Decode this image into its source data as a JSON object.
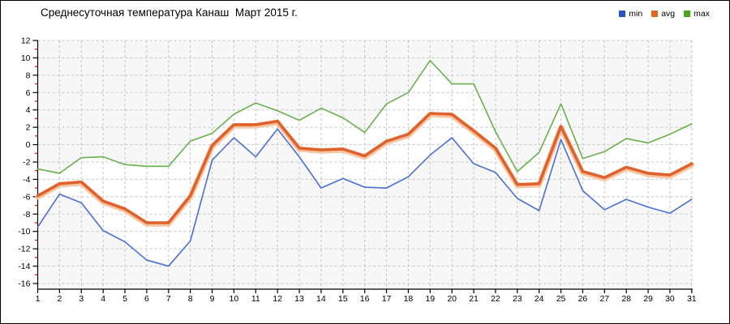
{
  "title": "Среднесуточная температура Канаш  Март 2015 г.",
  "legend": [
    {
      "label": "min",
      "color": "#2b4fc8"
    },
    {
      "label": "avg",
      "color": "#e2661f"
    },
    {
      "label": "max",
      "color": "#48a81c"
    }
  ],
  "chart_data": {
    "type": "line",
    "title": "Среднесуточная температура Канаш  Март 2015 г.",
    "xlabel": "",
    "ylabel": "",
    "x": [
      1,
      2,
      3,
      4,
      5,
      6,
      7,
      8,
      9,
      10,
      11,
      12,
      13,
      14,
      15,
      16,
      17,
      18,
      19,
      20,
      21,
      22,
      23,
      24,
      25,
      26,
      27,
      28,
      29,
      30,
      31
    ],
    "series": [
      {
        "name": "min",
        "color": "#4a6fd4",
        "width": 1.6,
        "values": [
          -9.5,
          -5.7,
          -6.7,
          -9.9,
          -11.2,
          -13.3,
          -14.0,
          -11.1,
          -1.8,
          0.8,
          -1.4,
          1.8,
          -1.4,
          -5.0,
          -3.9,
          -4.9,
          -5.0,
          -3.7,
          -1.2,
          0.8,
          -2.2,
          -3.2,
          -6.2,
          -7.6,
          0.6,
          -5.3,
          -7.5,
          -6.3,
          -7.2,
          -7.9,
          -6.3
        ]
      },
      {
        "name": "avg",
        "color": "#e0612c",
        "width": 3.6,
        "halo": "#f6c5a1",
        "values": [
          -5.9,
          -4.5,
          -4.3,
          -6.5,
          -7.4,
          -9.0,
          -9.0,
          -5.9,
          -0.1,
          2.3,
          2.3,
          2.7,
          -0.4,
          -0.6,
          -0.5,
          -1.3,
          0.4,
          1.2,
          3.6,
          3.5,
          1.6,
          -0.4,
          -4.6,
          -4.5,
          2.1,
          -3.1,
          -3.8,
          -2.6,
          -3.3,
          -3.5,
          -2.2
        ]
      },
      {
        "name": "max",
        "color": "#68b14c",
        "width": 1.6,
        "values": [
          -2.8,
          -3.3,
          -1.5,
          -1.4,
          -2.3,
          -2.5,
          -2.5,
          0.4,
          1.3,
          3.5,
          4.8,
          3.9,
          2.8,
          4.2,
          3.1,
          1.4,
          4.7,
          6.0,
          9.7,
          7.0,
          7.0,
          1.5,
          -3.1,
          -0.9,
          4.7,
          -1.6,
          -0.8,
          0.7,
          0.2,
          1.2,
          2.4
        ]
      }
    ],
    "ylim": [
      -16,
      12
    ],
    "yticks": [
      12,
      10,
      8,
      6,
      4,
      2,
      0,
      -2,
      -4,
      -6,
      -8,
      -10,
      -12,
      -14,
      -16
    ],
    "grid": "dashed",
    "legend_position": "top-right",
    "colors": {
      "plot_bg": "#f7f7f7",
      "band_fill": "#ffffff",
      "grid": "#c3c3c3",
      "axis": "#000000",
      "minor_tick": "#cc1111",
      "tick_label": "#000000"
    }
  }
}
